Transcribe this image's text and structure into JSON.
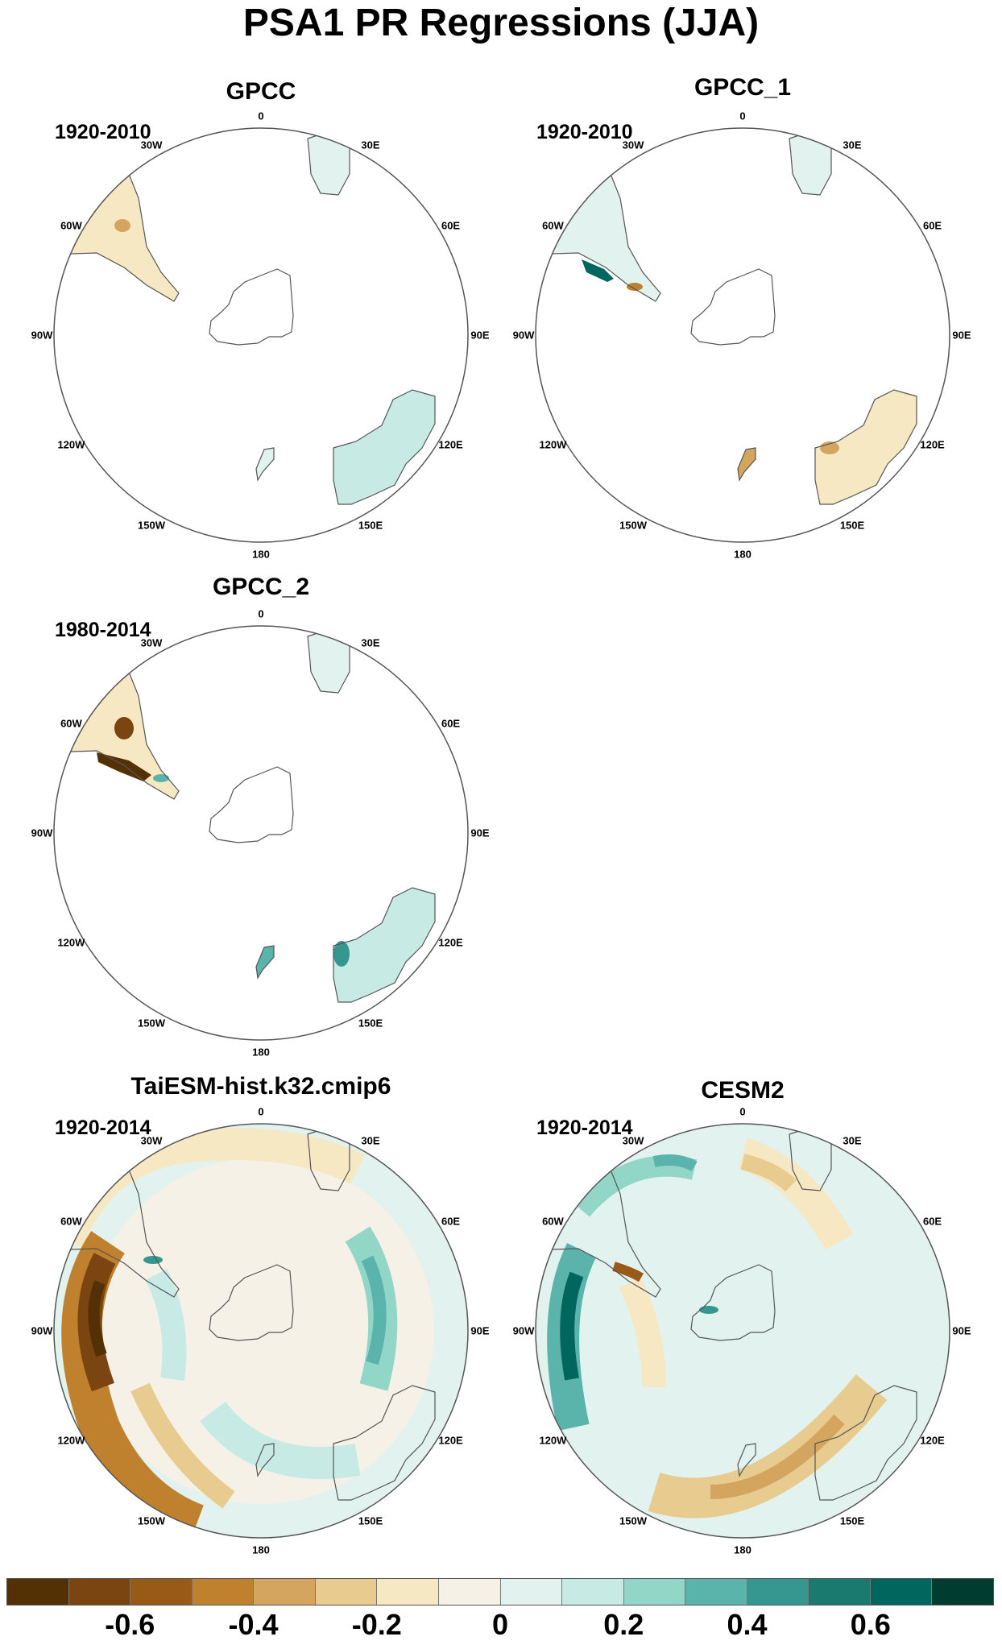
{
  "title": "PSA1 PR Regressions (JJA)",
  "longitude_labels": [
    "0",
    "30E",
    "60E",
    "90E",
    "120E",
    "150E",
    "180",
    "150W",
    "120W",
    "90W",
    "60W",
    "30W"
  ],
  "panels": [
    {
      "title": "GPCC",
      "period": "1920-2010",
      "projection": "south-polar-stereographic",
      "coverage": "land-only"
    },
    {
      "title": "GPCC_1",
      "period": "1920-2010",
      "projection": "south-polar-stereographic",
      "coverage": "land-only"
    },
    {
      "title": "GPCC_2",
      "period": "1980-2014",
      "projection": "south-polar-stereographic",
      "coverage": "land-only"
    },
    {
      "title": "TaiESM-hist.k32.cmip6",
      "period": "1920-2014",
      "projection": "south-polar-stereographic",
      "coverage": "global"
    },
    {
      "title": "CESM2",
      "period": "1920-2014",
      "projection": "south-polar-stereographic",
      "coverage": "global"
    }
  ],
  "colorbar": {
    "labels": [
      "-0.6",
      "-0.4",
      "-0.2",
      "0",
      "0.2",
      "0.4",
      "0.6"
    ],
    "colors": [
      "#543005",
      "#7a4510",
      "#9a5a17",
      "#bf812d",
      "#d4a55e",
      "#e8cc8f",
      "#f6e8c3",
      "#f5f1e6",
      "#e2f2ee",
      "#c7eae5",
      "#92d6c8",
      "#5ab4ac",
      "#35978f",
      "#1a7a70",
      "#01665e",
      "#003c30"
    ]
  }
}
